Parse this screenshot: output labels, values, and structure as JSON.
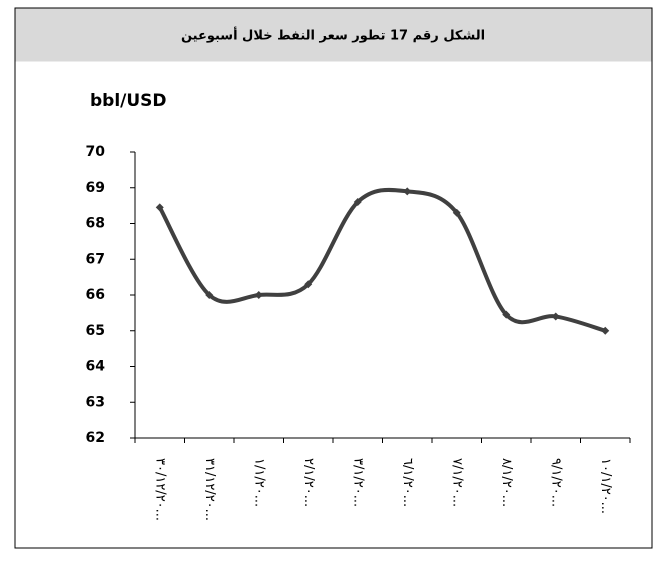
{
  "chart_data": {
    "type": "line",
    "title": "الشكل رقم 17 تطور سعر النفط خلال أسبوعين",
    "y_label": "bbl/USD",
    "categories": [
      "٣٠/١٢/٢٠...",
      "٣١/١٢/٢٠...",
      "١/١/٢٠...",
      "٢/١/٢٠...",
      "٣/١/٢٠...",
      "٦/١/٢٠...",
      "٧/١/٢٠...",
      "٨/١/٢٠...",
      "٩/١/٢٠...",
      "١٠/١/٢٠..."
    ],
    "series": [
      {
        "name": "bbl/USD",
        "color": "#404040",
        "values": [
          68.45,
          66.0,
          66.0,
          66.3,
          68.6,
          68.9,
          68.3,
          65.45,
          65.4,
          65.0
        ]
      }
    ],
    "ylim": [
      62,
      70
    ],
    "yticks": [
      62,
      63,
      64,
      65,
      66,
      67,
      68,
      69,
      70
    ],
    "grid": false
  }
}
